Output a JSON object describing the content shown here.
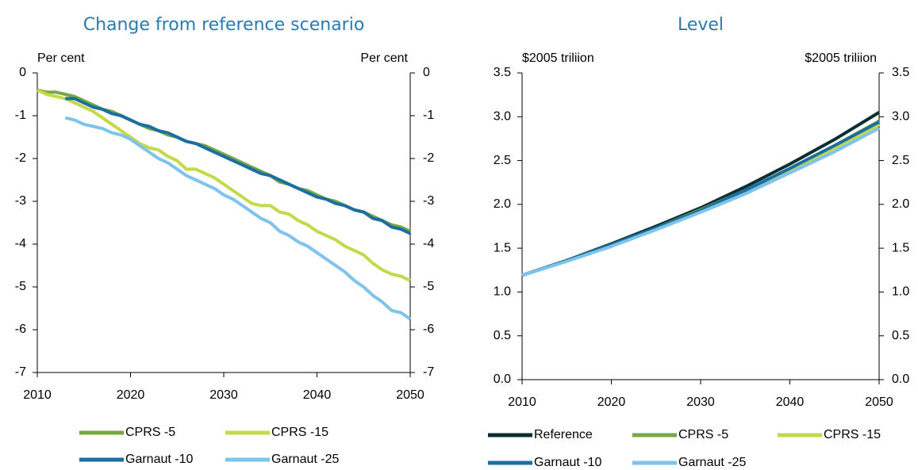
{
  "chart_data": [
    {
      "type": "line",
      "title": "Change from reference scenario",
      "y_label": "Per cent",
      "y2_label": "Per cent",
      "xlim": [
        2010,
        2050
      ],
      "xticks": [
        2010,
        2020,
        2030,
        2040,
        2050
      ],
      "ylim": [
        -7,
        0
      ],
      "yticks": [
        0,
        -1,
        -2,
        -3,
        -4,
        -5,
        -6,
        -7
      ],
      "x": [
        2010,
        2011,
        2012,
        2013,
        2014,
        2015,
        2016,
        2017,
        2018,
        2019,
        2020,
        2021,
        2022,
        2023,
        2024,
        2025,
        2026,
        2027,
        2028,
        2029,
        2030,
        2031,
        2032,
        2033,
        2034,
        2035,
        2036,
        2037,
        2038,
        2039,
        2040,
        2041,
        2042,
        2043,
        2044,
        2045,
        2046,
        2047,
        2048,
        2049,
        2050
      ],
      "series": [
        {
          "name": "CPRS -5",
          "color": "#77a843",
          "values": [
            -0.4,
            -0.45,
            -0.45,
            -0.5,
            -0.55,
            -0.65,
            -0.75,
            -0.85,
            -0.9,
            -1.0,
            -1.1,
            -1.2,
            -1.3,
            -1.35,
            -1.45,
            -1.5,
            -1.6,
            -1.65,
            -1.7,
            -1.8,
            -1.9,
            -2.0,
            -2.1,
            -2.2,
            -2.3,
            -2.4,
            -2.55,
            -2.6,
            -2.7,
            -2.75,
            -2.85,
            -2.95,
            -3.0,
            -3.1,
            -3.2,
            -3.25,
            -3.35,
            -3.45,
            -3.55,
            -3.6,
            -3.7
          ]
        },
        {
          "name": "CPRS -15",
          "color": "#c5d84a",
          "values": [
            -0.4,
            -0.5,
            -0.55,
            -0.6,
            -0.7,
            -0.8,
            -0.9,
            -1.05,
            -1.2,
            -1.35,
            -1.5,
            -1.65,
            -1.75,
            -1.8,
            -1.95,
            -2.05,
            -2.25,
            -2.25,
            -2.35,
            -2.45,
            -2.6,
            -2.75,
            -2.9,
            -3.05,
            -3.1,
            -3.1,
            -3.25,
            -3.3,
            -3.45,
            -3.55,
            -3.7,
            -3.8,
            -3.9,
            -4.05,
            -4.15,
            -4.25,
            -4.45,
            -4.6,
            -4.7,
            -4.75,
            -4.85
          ]
        },
        {
          "name": "Garnaut -10",
          "color": "#1a6fa0",
          "values": [
            null,
            null,
            null,
            -0.6,
            -0.6,
            -0.7,
            -0.8,
            -0.85,
            -0.95,
            -1.0,
            -1.1,
            -1.2,
            -1.25,
            -1.35,
            -1.4,
            -1.5,
            -1.6,
            -1.65,
            -1.75,
            -1.85,
            -1.95,
            -2.05,
            -2.15,
            -2.25,
            -2.35,
            -2.4,
            -2.5,
            -2.6,
            -2.7,
            -2.8,
            -2.9,
            -2.95,
            -3.05,
            -3.1,
            -3.2,
            -3.25,
            -3.4,
            -3.45,
            -3.6,
            -3.65,
            -3.75
          ]
        },
        {
          "name": "Garnaut -25",
          "color": "#7dc3ec",
          "values": [
            null,
            null,
            null,
            -1.05,
            -1.1,
            -1.2,
            -1.25,
            -1.3,
            -1.4,
            -1.45,
            -1.55,
            -1.7,
            -1.85,
            -2.0,
            -2.1,
            -2.25,
            -2.4,
            -2.5,
            -2.6,
            -2.7,
            -2.85,
            -2.95,
            -3.1,
            -3.25,
            -3.4,
            -3.5,
            -3.7,
            -3.8,
            -3.95,
            -4.05,
            -4.2,
            -4.35,
            -4.5,
            -4.65,
            -4.85,
            -5.0,
            -5.2,
            -5.35,
            -5.55,
            -5.6,
            -5.75
          ]
        }
      ]
    },
    {
      "type": "line",
      "title": "Level",
      "y_label": "$2005 triliion",
      "y2_label": "$2005 triliion",
      "xlim": [
        2010,
        2050
      ],
      "xticks": [
        2010,
        2020,
        2030,
        2040,
        2050
      ],
      "ylim": [
        0,
        3.5
      ],
      "yticks": [
        {
          "value": 0,
          "label": "0.0"
        },
        {
          "value": 0.5,
          "label": "0.5"
        },
        {
          "value": 1,
          "label": "1.0"
        },
        {
          "value": 1.5,
          "label": "1.5"
        },
        {
          "value": 2,
          "label": "2.0"
        },
        {
          "value": 2.5,
          "label": "2.5"
        },
        {
          "value": 3,
          "label": "3.0"
        },
        {
          "value": 3.5,
          "label": "3.5"
        }
      ],
      "x": [
        2010,
        2015,
        2020,
        2025,
        2030,
        2035,
        2040,
        2045,
        2050
      ],
      "series": [
        {
          "name": "Reference",
          "color": "#0b2e33",
          "values": [
            1.19,
            1.36,
            1.55,
            1.75,
            1.96,
            2.2,
            2.46,
            2.74,
            3.05
          ]
        },
        {
          "name": "CPRS -5",
          "color": "#77a843",
          "values": [
            1.19,
            1.36,
            1.54,
            1.73,
            1.94,
            2.16,
            2.41,
            2.67,
            2.95
          ]
        },
        {
          "name": "CPRS -15",
          "color": "#c5d84a",
          "values": [
            1.19,
            1.36,
            1.53,
            1.72,
            1.92,
            2.14,
            2.38,
            2.64,
            2.91
          ]
        },
        {
          "name": "Garnaut -10",
          "color": "#1a6fa0",
          "values": [
            1.19,
            1.36,
            1.54,
            1.73,
            1.93,
            2.16,
            2.41,
            2.67,
            2.94
          ]
        },
        {
          "name": "Garnaut -25",
          "color": "#7dc3ec",
          "values": [
            1.19,
            1.35,
            1.52,
            1.71,
            1.91,
            2.12,
            2.36,
            2.6,
            2.87
          ]
        }
      ]
    }
  ]
}
